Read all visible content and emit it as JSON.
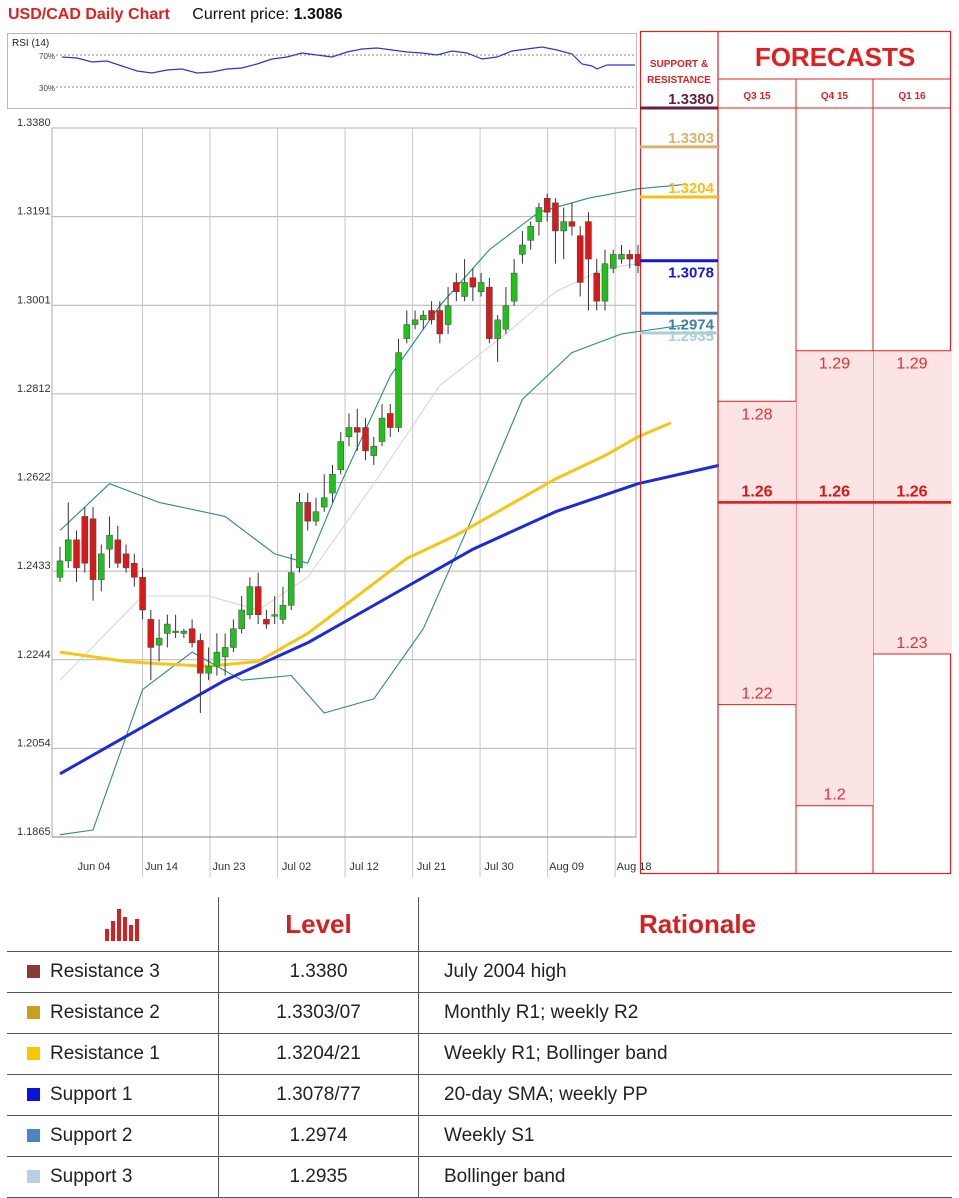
{
  "header": {
    "title": "USD/CAD Daily Chart",
    "price_label": "Current price:",
    "price_value": "1.3086"
  },
  "rsi": {
    "label": "RSI (14)",
    "level_high": "70%",
    "level_low": "30%"
  },
  "colors": {
    "accent": "#e02020",
    "bull": "#22c01e",
    "bear": "#d81a1a",
    "ma200": "#1c2ad8",
    "ma50": "#f5c518",
    "bollinger": "#2b8a86"
  },
  "chart_data": {
    "type": "candlestick",
    "title": "USD/CAD Daily Chart",
    "y_ticks": [
      "1.3380",
      "1.3191",
      "1.3001",
      "1.2812",
      "1.2622",
      "1.2433",
      "1.2244",
      "1.2054",
      "1.1865"
    ],
    "x_ticks": [
      "Jun 04",
      "Jun 14",
      "Jun 23",
      "Jul 02",
      "Jul 12",
      "Jul 21",
      "Jul 30",
      "Aug 09",
      "Aug 18"
    ],
    "ylim": [
      1.1865,
      1.338
    ],
    "candles": [
      [
        1.242,
        1.2455,
        1.2485,
        1.241
      ],
      [
        1.2455,
        1.25,
        1.258,
        1.244
      ],
      [
        1.25,
        1.244,
        1.252,
        1.241
      ],
      [
        1.255,
        1.245,
        1.257,
        1.243
      ],
      [
        1.2545,
        1.2415,
        1.257,
        1.237
      ],
      [
        1.2415,
        1.247,
        1.249,
        1.239
      ],
      [
        1.248,
        1.251,
        1.255,
        1.244
      ],
      [
        1.25,
        1.245,
        1.253,
        1.244
      ],
      [
        1.247,
        1.244,
        1.249,
        1.243
      ],
      [
        1.245,
        1.242,
        1.247,
        1.24
      ],
      [
        1.242,
        1.235,
        1.244,
        1.233
      ],
      [
        1.233,
        1.227,
        1.235,
        1.22
      ],
      [
        1.2275,
        1.229,
        1.233,
        1.224
      ],
      [
        1.23,
        1.232,
        1.234,
        1.227
      ],
      [
        1.2305,
        1.2305,
        1.234,
        1.229
      ],
      [
        1.23,
        1.2305,
        1.231,
        1.229
      ],
      [
        1.231,
        1.228,
        1.233,
        1.227
      ],
      [
        1.2285,
        1.2215,
        1.23,
        1.213
      ],
      [
        1.2215,
        1.223,
        1.227,
        1.22
      ],
      [
        1.223,
        1.226,
        1.23,
        1.221
      ],
      [
        1.225,
        1.227,
        1.23,
        1.221
      ],
      [
        1.227,
        1.231,
        1.233,
        1.226
      ],
      [
        1.231,
        1.235,
        1.238,
        1.23
      ],
      [
        1.234,
        1.24,
        1.242,
        1.233
      ],
      [
        1.24,
        1.234,
        1.243,
        1.232
      ],
      [
        1.233,
        1.232,
        1.235,
        1.231
      ],
      [
        1.234,
        1.234,
        1.238,
        1.232
      ],
      [
        1.233,
        1.236,
        1.24,
        1.232
      ],
      [
        1.236,
        1.243,
        1.247,
        1.235
      ],
      [
        1.244,
        1.258,
        1.26,
        1.243
      ],
      [
        1.258,
        1.254,
        1.26,
        1.252
      ],
      [
        1.254,
        1.256,
        1.259,
        1.253
      ],
      [
        1.257,
        1.259,
        1.264,
        1.256
      ],
      [
        1.26,
        1.264,
        1.266,
        1.258
      ],
      [
        1.265,
        1.271,
        1.273,
        1.264
      ],
      [
        1.272,
        1.274,
        1.277,
        1.27
      ],
      [
        1.274,
        1.273,
        1.278,
        1.269
      ],
      [
        1.274,
        1.269,
        1.276,
        1.267
      ],
      [
        1.268,
        1.27,
        1.272,
        1.266
      ],
      [
        1.271,
        1.276,
        1.279,
        1.27
      ],
      [
        1.277,
        1.274,
        1.279,
        1.272
      ],
      [
        1.274,
        1.29,
        1.293,
        1.273
      ],
      [
        1.293,
        1.296,
        1.299,
        1.292
      ],
      [
        1.296,
        1.297,
        1.299,
        1.295
      ],
      [
        1.297,
        1.298,
        1.299,
        1.295
      ],
      [
        1.299,
        1.297,
        1.301,
        1.296
      ],
      [
        1.299,
        1.294,
        1.301,
        1.292
      ],
      [
        1.296,
        1.3,
        1.304,
        1.294
      ],
      [
        1.305,
        1.303,
        1.307,
        1.301
      ],
      [
        1.302,
        1.305,
        1.31,
        1.301
      ],
      [
        1.306,
        1.304,
        1.308,
        1.301
      ],
      [
        1.303,
        1.305,
        1.307,
        1.302
      ],
      [
        1.304,
        1.293,
        1.306,
        1.292
      ],
      [
        1.293,
        1.297,
        1.298,
        1.288
      ],
      [
        1.295,
        1.3,
        1.304,
        1.294
      ],
      [
        1.301,
        1.307,
        1.31,
        1.3
      ],
      [
        1.311,
        1.313,
        1.316,
        1.309
      ],
      [
        1.314,
        1.317,
        1.318,
        1.312
      ],
      [
        1.318,
        1.321,
        1.322,
        1.315
      ],
      [
        1.323,
        1.32,
        1.324,
        1.318
      ],
      [
        1.322,
        1.316,
        1.323,
        1.309
      ],
      [
        1.316,
        1.318,
        1.321,
        1.31
      ],
      [
        1.318,
        1.317,
        1.322,
        1.315
      ],
      [
        1.315,
        1.305,
        1.317,
        1.302
      ],
      [
        1.318,
        1.31,
        1.32,
        1.299
      ],
      [
        1.307,
        1.301,
        1.31,
        1.299
      ],
      [
        1.301,
        1.309,
        1.312,
        1.299
      ],
      [
        1.308,
        1.311,
        1.312,
        1.307
      ],
      [
        1.31,
        1.311,
        1.313,
        1.309
      ],
      [
        1.311,
        1.31,
        1.312,
        1.308
      ],
      [
        1.311,
        1.3086,
        1.313,
        1.307
      ]
    ],
    "ma200": [
      [
        0,
        1.2
      ],
      [
        10,
        1.21
      ],
      [
        20,
        1.22
      ],
      [
        30,
        1.228
      ],
      [
        40,
        1.238
      ],
      [
        50,
        1.248
      ],
      [
        60,
        1.256
      ],
      [
        70,
        1.262
      ],
      [
        80,
        1.266
      ]
    ],
    "ma50": [
      [
        0,
        1.226
      ],
      [
        8,
        1.224
      ],
      [
        12,
        1.2235
      ],
      [
        18,
        1.223
      ],
      [
        24,
        1.224
      ],
      [
        30,
        1.23
      ],
      [
        36,
        1.238
      ],
      [
        42,
        1.246
      ],
      [
        48,
        1.251
      ],
      [
        54,
        1.257
      ],
      [
        60,
        1.263
      ],
      [
        66,
        1.268
      ],
      [
        70,
        1.272
      ],
      [
        74,
        1.275
      ]
    ],
    "sma20": [
      [
        0,
        1.22
      ],
      [
        10,
        1.238
      ],
      [
        18,
        1.238
      ],
      [
        24,
        1.235
      ],
      [
        30,
        1.242
      ],
      [
        38,
        1.262
      ],
      [
        46,
        1.283
      ],
      [
        54,
        1.294
      ],
      [
        60,
        1.303
      ],
      [
        66,
        1.308
      ],
      [
        70,
        1.309
      ]
    ],
    "bb_upper": [
      [
        0,
        1.252
      ],
      [
        6,
        1.262
      ],
      [
        12,
        1.258
      ],
      [
        20,
        1.255
      ],
      [
        26,
        1.247
      ],
      [
        30,
        1.245
      ],
      [
        34,
        1.262
      ],
      [
        40,
        1.285
      ],
      [
        46,
        1.3
      ],
      [
        52,
        1.312
      ],
      [
        58,
        1.32
      ],
      [
        64,
        1.323
      ],
      [
        70,
        1.325
      ],
      [
        76,
        1.326
      ]
    ],
    "bb_lower": [
      [
        0,
        1.187
      ],
      [
        4,
        1.188
      ],
      [
        10,
        1.218
      ],
      [
        16,
        1.226
      ],
      [
        22,
        1.22
      ],
      [
        28,
        1.221
      ],
      [
        32,
        1.213
      ],
      [
        38,
        1.216
      ],
      [
        44,
        1.231
      ],
      [
        50,
        1.255
      ],
      [
        56,
        1.28
      ],
      [
        62,
        1.29
      ],
      [
        68,
        1.294
      ],
      [
        76,
        1.296
      ]
    ],
    "support_resistance": [
      {
        "label": "1.3380",
        "color": "#6a1f3e"
      },
      {
        "label": "1.3303",
        "color": "#d8b36c"
      },
      {
        "label": "1.3204",
        "color": "#f2c01a"
      },
      {
        "label": "1.3078",
        "color": "#1418d6"
      },
      {
        "label": "1.2974",
        "color": "#3f7ea8"
      },
      {
        "label": "1.2935",
        "color": "#a9cfd6"
      }
    ],
    "forecasts": {
      "columns": [
        "Q3 15",
        "Q4 15",
        "Q1 16"
      ],
      "high": [
        "1.28",
        "1.29",
        "1.29"
      ],
      "mid": [
        "1.26",
        "1.26",
        "1.26"
      ],
      "low": [
        "1.22",
        "1.2",
        "1.23"
      ]
    }
  },
  "side_panel": {
    "sr_title_1": "SUPPORT &",
    "sr_title_2": "RESISTANCE",
    "forecast_title": "FORECASTS"
  },
  "levels_table": {
    "headers": {
      "level": "Level",
      "rationale": "Rationale"
    },
    "rows": [
      {
        "name": "Resistance 3",
        "level": "1.3380",
        "rationale": "July 2004 high",
        "color": "#8b3a3a"
      },
      {
        "name": "Resistance 2",
        "level": "1.3303/07",
        "rationale": "Monthly R1; weekly R2",
        "color": "#c8a020"
      },
      {
        "name": "Resistance 1",
        "level": "1.3204/21",
        "rationale": "Weekly R1; Bollinger band",
        "color": "#f5c800"
      },
      {
        "name": "Support 1",
        "level": "1.3078/77",
        "rationale": "20-day SMA; weekly PP",
        "color": "#0a14d8"
      },
      {
        "name": "Support 2",
        "level": "1.2974",
        "rationale": "Weekly S1",
        "color": "#4a86c0"
      },
      {
        "name": "Support 3",
        "level": "1.2935",
        "rationale": "Bollinger band",
        "color": "#b8cfe6"
      }
    ]
  }
}
